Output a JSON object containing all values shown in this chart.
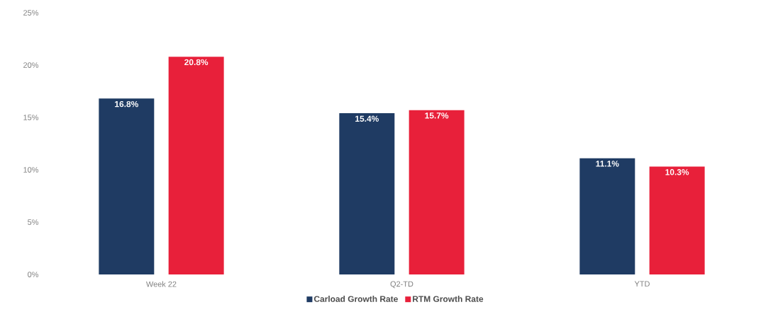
{
  "chart_data": {
    "type": "bar",
    "categories": [
      "Week 22",
      "Q2-TD",
      "YTD"
    ],
    "series": [
      {
        "name": "Carload Growth Rate",
        "color": "#1f3b63",
        "values": [
          16.8,
          15.4,
          11.1
        ],
        "value_labels": [
          "16.8%",
          "15.4%",
          "11.1%"
        ]
      },
      {
        "name": "RTM Growth Rate",
        "color": "#e8203a",
        "values": [
          20.8,
          15.7,
          10.3
        ],
        "value_labels": [
          "20.8%",
          "15.7%",
          "10.3%"
        ]
      }
    ],
    "ylim": [
      0,
      25
    ],
    "yticks": [
      {
        "value": 0,
        "label": "0%"
      },
      {
        "value": 5,
        "label": "5%"
      },
      {
        "value": 10,
        "label": "10%"
      },
      {
        "value": 15,
        "label": "15%"
      },
      {
        "value": 20,
        "label": "20%"
      },
      {
        "value": 25,
        "label": "25%"
      }
    ],
    "grid": false,
    "legend": "bottom"
  }
}
